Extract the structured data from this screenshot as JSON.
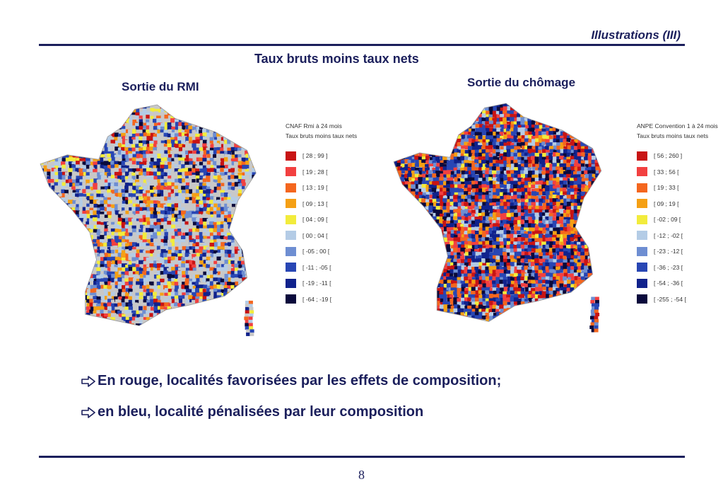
{
  "header": {
    "title": "Illustrations (III)"
  },
  "main_title": "Taux bruts moins taux nets",
  "maps": [
    {
      "title": "Sortie du RMI",
      "legend_title_1": "CNAF Rmi à 24 mois",
      "legend_title_2": "Taux bruts moins taux nets",
      "legend": [
        {
          "label": "[ 28 ; 99 ]",
          "color": "#c81414"
        },
        {
          "label": "[ 19 ; 28 [",
          "color": "#f24040"
        },
        {
          "label": "[ 13 ; 19 [",
          "color": "#f4661e"
        },
        {
          "label": "[ 09 ; 13 [",
          "color": "#f5a014"
        },
        {
          "label": "[ 04 ; 09 [",
          "color": "#f2ec3c"
        },
        {
          "label": "[ 00 ; 04 [",
          "color": "#b4cce6"
        },
        {
          "label": "[ -05 ; 00 [",
          "color": "#6e8ed2"
        },
        {
          "label": "[ -11 ; -05 [",
          "color": "#2846b4"
        },
        {
          "label": "[ -19 ; -11 [",
          "color": "#10228c"
        },
        {
          "label": "[ -64 ; -19 [",
          "color": "#0a0a3c"
        }
      ]
    },
    {
      "title": "Sortie du chômage",
      "legend_title_1": "ANPE Convention 1 à 24 mois",
      "legend_title_2": "Taux bruts moins taux nets",
      "legend": [
        {
          "label": "[ 56 ; 260 ]",
          "color": "#c81414"
        },
        {
          "label": "[ 33 ; 56 [",
          "color": "#f24040"
        },
        {
          "label": "[ 19 ; 33 [",
          "color": "#f4661e"
        },
        {
          "label": "[ 09 ; 19 [",
          "color": "#f5a014"
        },
        {
          "label": "[ -02 ; 09 [",
          "color": "#f2ec3c"
        },
        {
          "label": "[ -12 ; -02 [",
          "color": "#b4cce6"
        },
        {
          "label": "[ -23 ; -12 [",
          "color": "#6e8ed2"
        },
        {
          "label": "[ -36 ; -23 [",
          "color": "#2846b4"
        },
        {
          "label": "[ -54 ; -36 [",
          "color": "#10228c"
        },
        {
          "label": "[ -255 ; -54 [",
          "color": "#0a0a3c"
        }
      ]
    }
  ],
  "bullets": [
    "En rouge, localités favorisées par les effets de composition;",
    "en bleu, localité pénalisées par leur composition"
  ],
  "page_number": "8",
  "colors": {
    "accent": "#1b1f5c"
  }
}
